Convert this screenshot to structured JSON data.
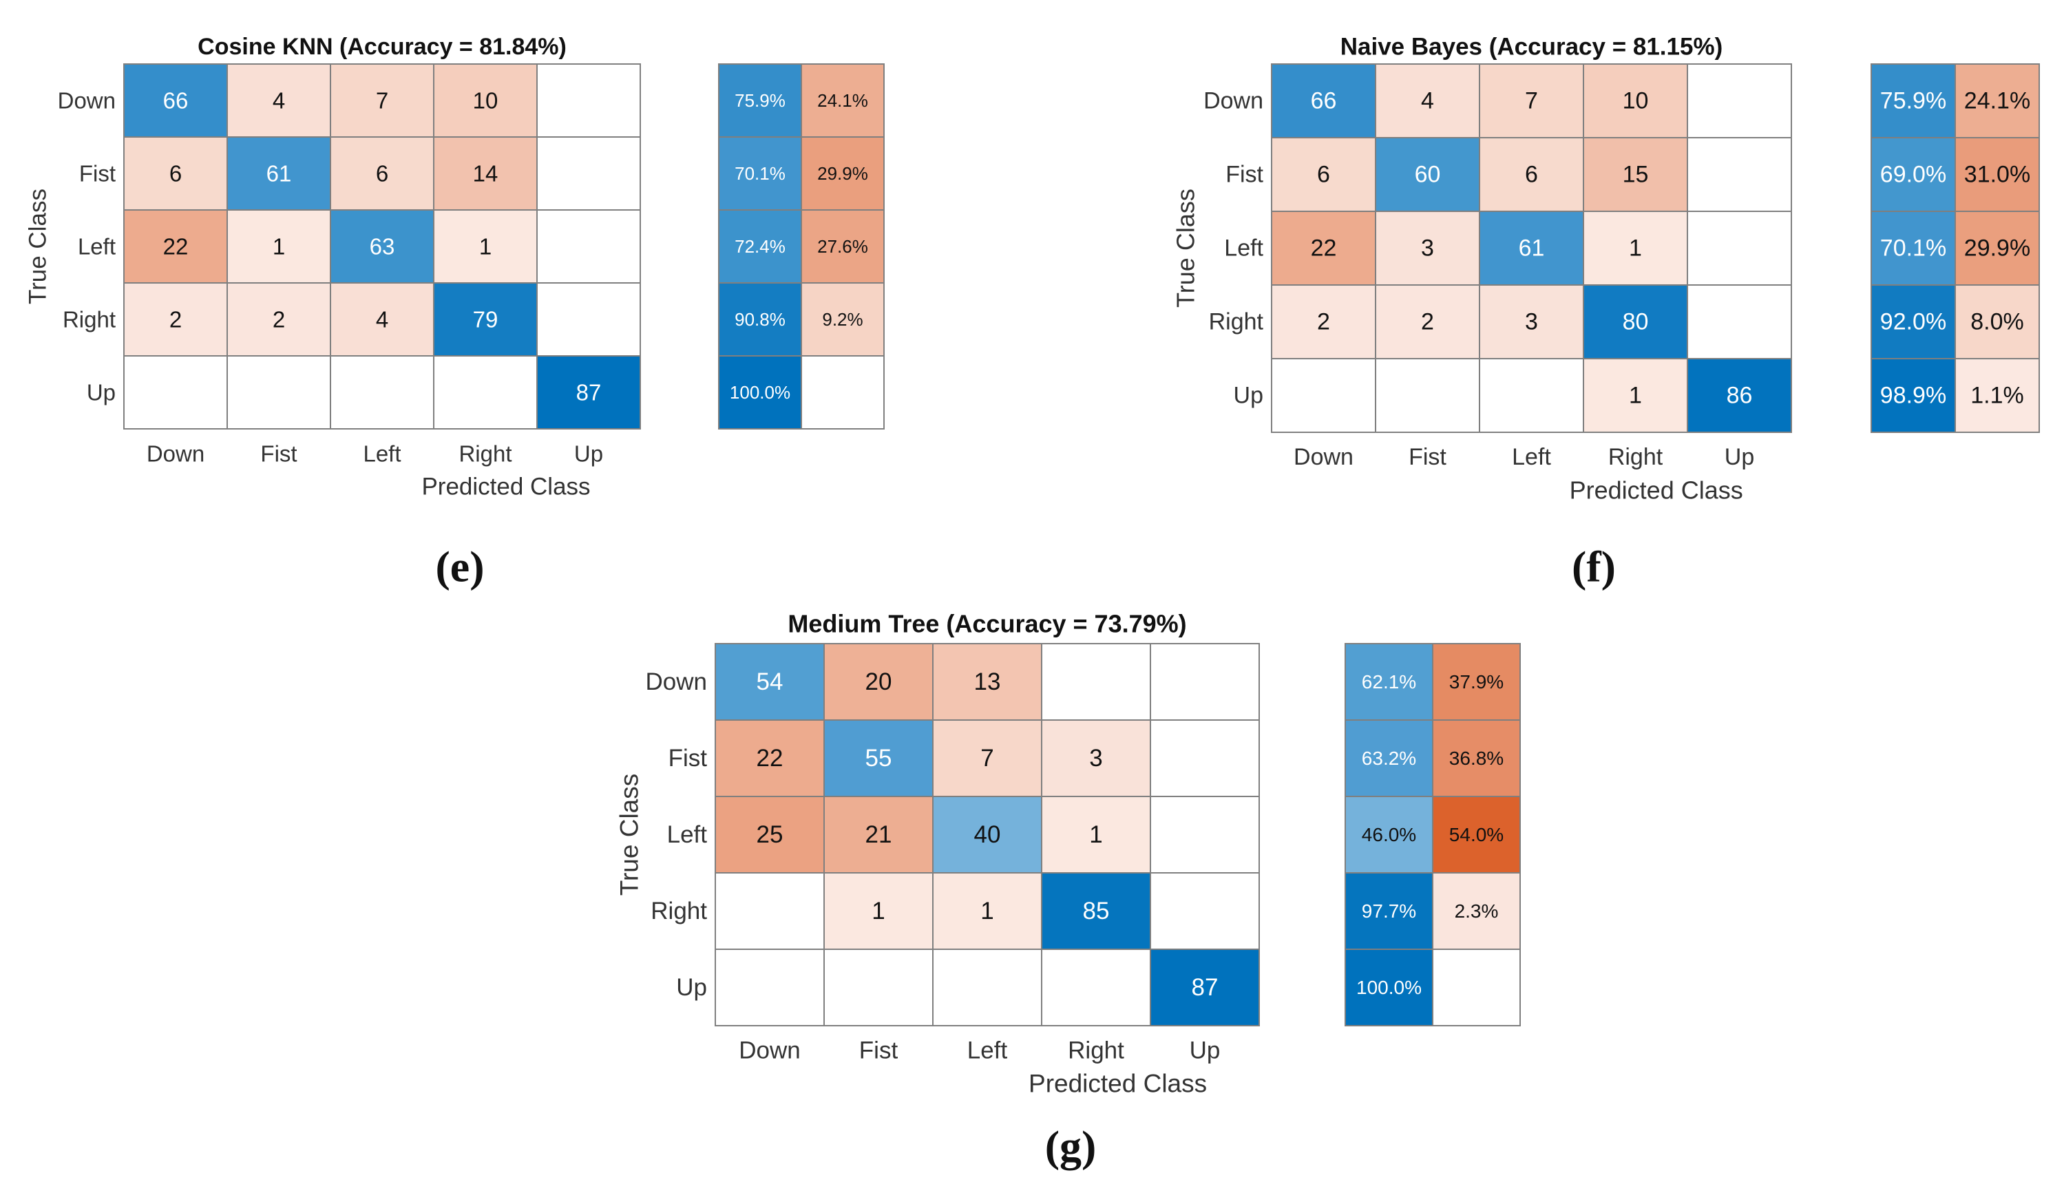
{
  "chart_data": [
    {
      "type": "heatmap",
      "subtype": "confusion-matrix",
      "panel_label": "(e)",
      "title": "Cosine KNN (Accuracy = 81.84%)",
      "xlabel": "Predicted Class",
      "ylabel": "True Class",
      "classes": [
        "Down",
        "Fist",
        "Left",
        "Right",
        "Up"
      ],
      "matrix": [
        [
          66,
          4,
          7,
          10,
          null
        ],
        [
          6,
          61,
          6,
          14,
          null
        ],
        [
          22,
          1,
          63,
          1,
          null
        ],
        [
          2,
          2,
          4,
          79,
          null
        ],
        [
          null,
          null,
          null,
          null,
          87
        ]
      ],
      "tpr_fnr": [
        [
          "75.9%",
          "24.1%"
        ],
        [
          "70.1%",
          "29.9%"
        ],
        [
          "72.4%",
          "27.6%"
        ],
        [
          "90.8%",
          "9.2%"
        ],
        [
          "100.0%",
          ""
        ]
      ]
    },
    {
      "type": "heatmap",
      "subtype": "confusion-matrix",
      "panel_label": "(f)",
      "title": "Naive Bayes (Accuracy = 81.15%)",
      "xlabel": "Predicted Class",
      "ylabel": "True Class",
      "classes": [
        "Down",
        "Fist",
        "Left",
        "Right",
        "Up"
      ],
      "matrix": [
        [
          66,
          4,
          7,
          10,
          null
        ],
        [
          6,
          60,
          6,
          15,
          null
        ],
        [
          22,
          3,
          61,
          1,
          null
        ],
        [
          2,
          2,
          3,
          80,
          null
        ],
        [
          null,
          null,
          null,
          1,
          86
        ]
      ],
      "tpr_fnr": [
        [
          "75.9%",
          "24.1%"
        ],
        [
          "69.0%",
          "31.0%"
        ],
        [
          "70.1%",
          "29.9%"
        ],
        [
          "92.0%",
          "8.0%"
        ],
        [
          "98.9%",
          "1.1%"
        ]
      ]
    },
    {
      "type": "heatmap",
      "subtype": "confusion-matrix",
      "panel_label": "(g)",
      "title": "Medium Tree (Accuracy = 73.79%)",
      "xlabel": "Predicted Class",
      "ylabel": "True Class",
      "classes": [
        "Down",
        "Fist",
        "Left",
        "Right",
        "Up"
      ],
      "matrix": [
        [
          54,
          20,
          13,
          null,
          null
        ],
        [
          22,
          55,
          7,
          3,
          null
        ],
        [
          25,
          21,
          40,
          1,
          null
        ],
        [
          null,
          1,
          1,
          85,
          null
        ],
        [
          null,
          null,
          null,
          null,
          87
        ]
      ],
      "tpr_fnr": [
        [
          "62.1%",
          "37.9%"
        ],
        [
          "63.2%",
          "36.8%"
        ],
        [
          "46.0%",
          "54.0%"
        ],
        [
          "97.7%",
          "2.3%"
        ],
        [
          "100.0%",
          ""
        ]
      ]
    }
  ],
  "colors": {
    "blue_strong": "#0072bd",
    "blue_light": "#d9e8f5",
    "orange_strong": "#d9541a",
    "orange_light": "#fdf3ef",
    "grid": "#7f7f7f",
    "text_dark": "#111111",
    "text_light": "#ffffff"
  }
}
